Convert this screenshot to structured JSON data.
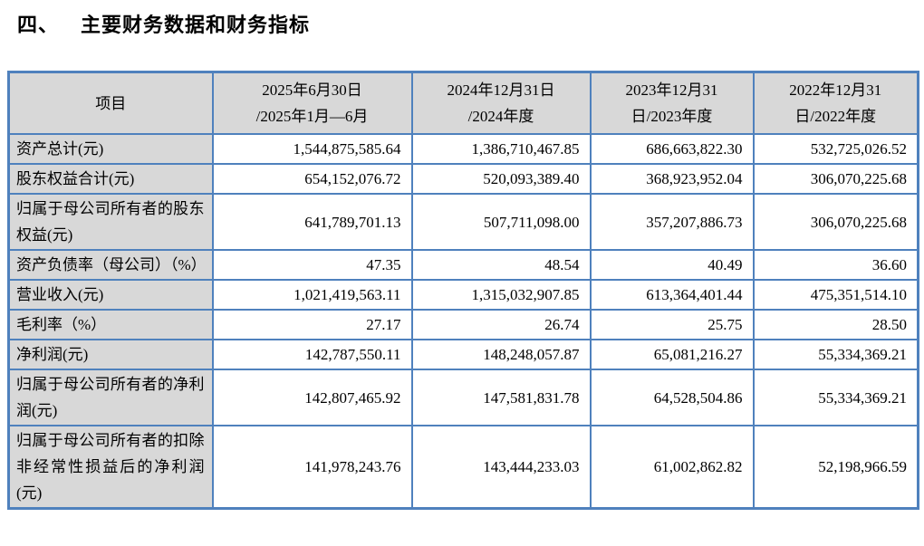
{
  "page": {
    "title_number": "四、",
    "title_text": "主要财务数据和财务指标"
  },
  "table": {
    "columns": [
      "项目",
      "2025年6月30日\n/2025年1月—6月",
      "2024年12月31日\n/2024年度",
      "2023年12月31\n日/2023年度",
      "2022年12月31\n日/2022年度"
    ],
    "rows": [
      {
        "label": "资产总计(元)",
        "values": [
          "1,544,875,585.64",
          "1,386,710,467.85",
          "686,663,822.30",
          "532,725,026.52"
        ]
      },
      {
        "label": "股东权益合计(元)",
        "values": [
          "654,152,076.72",
          "520,093,389.40",
          "368,923,952.04",
          "306,070,225.68"
        ]
      },
      {
        "label": "归属于母公司所有者的股东权益(元)",
        "values": [
          "641,789,701.13",
          "507,711,098.00",
          "357,207,886.73",
          "306,070,225.68"
        ]
      },
      {
        "label": "资产负债率（母公司）（%）",
        "values": [
          "47.35",
          "48.54",
          "40.49",
          "36.60"
        ]
      },
      {
        "label": "营业收入(元)",
        "values": [
          "1,021,419,563.11",
          "1,315,032,907.85",
          "613,364,401.44",
          "475,351,514.10"
        ]
      },
      {
        "label": "毛利率（%）",
        "values": [
          "27.17",
          "26.74",
          "25.75",
          "28.50"
        ]
      },
      {
        "label": "净利润(元)",
        "values": [
          "142,787,550.11",
          "148,248,057.87",
          "65,081,216.27",
          "55,334,369.21"
        ]
      },
      {
        "label": "归属于母公司所有者的净利润(元)",
        "values": [
          "142,807,465.92",
          "147,581,831.78",
          "64,528,504.86",
          "55,334,369.21"
        ]
      },
      {
        "label": "归属于母公司所有者的扣除非经常性损益后的净利润(元)",
        "values": [
          "141,978,243.76",
          "143,444,233.03",
          "61,002,862.82",
          "52,198,966.59"
        ]
      }
    ],
    "style": {
      "border_color": "#4f81bd",
      "header_bg": "#d8d8d8",
      "label_bg": "#d8d8d8",
      "cell_bg": "#ffffff",
      "text_color": "#000000"
    }
  }
}
